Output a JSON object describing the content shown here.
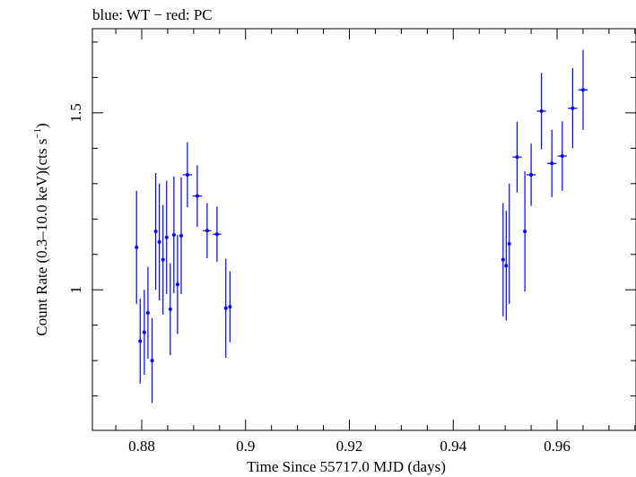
{
  "chart_data": {
    "type": "scatter",
    "title": "blue: WT − red: PC",
    "xlabel": "Time Since 55717.0 MJD (days)",
    "ylabel_main": "Count Rate (0.3–10.0 keV)(cts s",
    "ylabel_sup": "−1",
    "ylabel_close": ")",
    "xlim": [
      0.8705,
      0.9752
    ],
    "ylim": [
      0.6028,
      1.7378
    ],
    "x_ticks": [
      0.88,
      0.9,
      0.92,
      0.94,
      0.96
    ],
    "x_tick_labels": [
      "0.88",
      "0.9",
      "0.92",
      "0.94",
      "0.96"
    ],
    "y_ticks": [
      1.0,
      1.5
    ],
    "y_tick_labels": [
      "1",
      "1.5"
    ],
    "grid": false,
    "series": [
      {
        "color": "#0000ff",
        "points": [
          {
            "x": 0.879,
            "y": 1.12,
            "xerr": 0.0002,
            "yerr": 0.16
          },
          {
            "x": 0.8797,
            "y": 0.855,
            "xerr": 0.0002,
            "yerr": 0.12
          },
          {
            "x": 0.8805,
            "y": 0.88,
            "xerr": 0.0002,
            "yerr": 0.12
          },
          {
            "x": 0.8812,
            "y": 0.935,
            "xerr": 0.0002,
            "yerr": 0.13
          },
          {
            "x": 0.882,
            "y": 0.8,
            "xerr": 0.0002,
            "yerr": 0.12
          },
          {
            "x": 0.8827,
            "y": 1.165,
            "xerr": 0.0002,
            "yerr": 0.165
          },
          {
            "x": 0.8834,
            "y": 1.135,
            "xerr": 0.0002,
            "yerr": 0.165
          },
          {
            "x": 0.8841,
            "y": 1.085,
            "xerr": 0.0002,
            "yerr": 0.155
          },
          {
            "x": 0.8848,
            "y": 1.148,
            "xerr": 0.0002,
            "yerr": 0.16
          },
          {
            "x": 0.8855,
            "y": 0.945,
            "xerr": 0.0002,
            "yerr": 0.13
          },
          {
            "x": 0.8862,
            "y": 1.155,
            "xerr": 0.0002,
            "yerr": 0.165
          },
          {
            "x": 0.8869,
            "y": 1.015,
            "xerr": 0.0002,
            "yerr": 0.14
          },
          {
            "x": 0.8876,
            "y": 1.153,
            "xerr": 0.0002,
            "yerr": 0.165
          },
          {
            "x": 0.8888,
            "y": 1.325,
            "xerr": 0.0009,
            "yerr": 0.092
          },
          {
            "x": 0.8907,
            "y": 1.265,
            "xerr": 0.0009,
            "yerr": 0.087
          },
          {
            "x": 0.8926,
            "y": 1.167,
            "xerr": 0.0008,
            "yerr": 0.078
          },
          {
            "x": 0.8945,
            "y": 1.157,
            "xerr": 0.0008,
            "yerr": 0.078
          },
          {
            "x": 0.8962,
            "y": 0.948,
            "xerr": 0.0002,
            "yerr": 0.14
          },
          {
            "x": 0.897,
            "y": 0.952,
            "xerr": 0.0002,
            "yerr": 0.1
          },
          {
            "x": 0.9496,
            "y": 1.085,
            "xerr": 0.0002,
            "yerr": 0.16
          },
          {
            "x": 0.9502,
            "y": 1.068,
            "xerr": 0.0002,
            "yerr": 0.155
          },
          {
            "x": 0.9508,
            "y": 1.13,
            "xerr": 0.0002,
            "yerr": 0.17
          },
          {
            "x": 0.9523,
            "y": 1.375,
            "xerr": 0.0009,
            "yerr": 0.1
          },
          {
            "x": 0.9538,
            "y": 1.165,
            "xerr": 0.0002,
            "yerr": 0.17
          },
          {
            "x": 0.955,
            "y": 1.325,
            "xerr": 0.0009,
            "yerr": 0.088
          },
          {
            "x": 0.957,
            "y": 1.505,
            "xerr": 0.0009,
            "yerr": 0.108
          },
          {
            "x": 0.959,
            "y": 1.357,
            "xerr": 0.0009,
            "yerr": 0.095
          },
          {
            "x": 0.961,
            "y": 1.378,
            "xerr": 0.0009,
            "yerr": 0.098
          },
          {
            "x": 0.963,
            "y": 1.513,
            "xerr": 0.0009,
            "yerr": 0.113
          },
          {
            "x": 0.965,
            "y": 1.565,
            "xerr": 0.0009,
            "yerr": 0.113
          }
        ]
      }
    ]
  }
}
